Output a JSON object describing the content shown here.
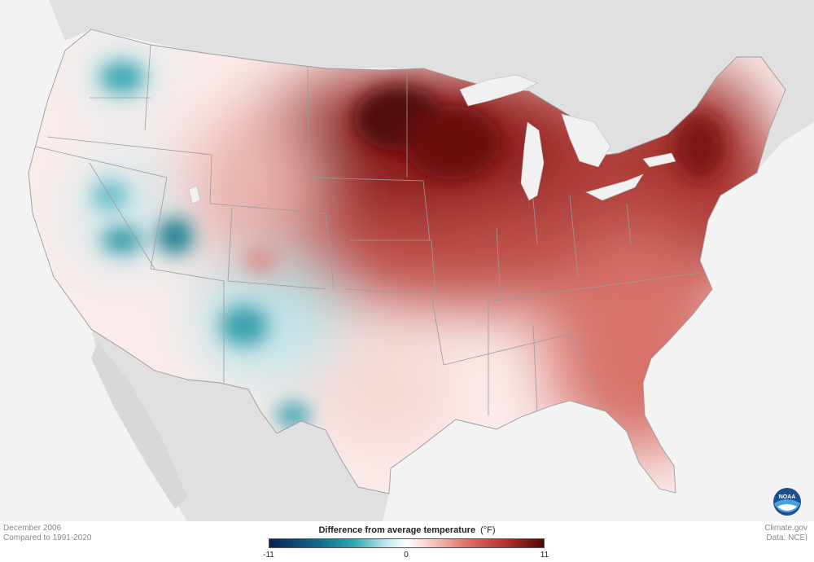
{
  "period": "December 2006",
  "baseline": "Compared to 1991-2020",
  "credit_site": "Climate.gov",
  "credit_data": "Data: NCEI",
  "legend": {
    "title": "Difference from average temperature",
    "unit": "(°F)",
    "min": "-11",
    "mid": "0",
    "max": "11"
  },
  "colors": {
    "background": "#f3f3f3",
    "land_outside": "#dcdcdc",
    "cold_extreme": "#0b1f57",
    "cold": "#2aa2ab",
    "neutral": "#ffffff",
    "warm": "#dd7066",
    "warm_extreme": "#4d0606"
  },
  "logo": {
    "icon": "noaa-logo",
    "text": "NOAA"
  }
}
